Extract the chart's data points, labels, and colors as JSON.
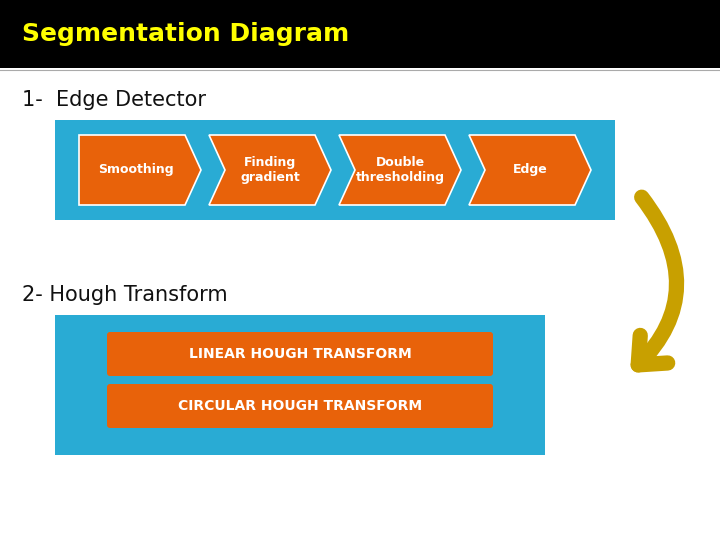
{
  "title": "Segmentation Diagram",
  "title_color": "#FFFF00",
  "title_bg": "#000000",
  "section1_label": "1-  Edge Detector",
  "section2_label": "2- Hough Transform",
  "section_label_color": "#111111",
  "bg_color": "#ffffff",
  "panel_color": "#29ABD4",
  "arrow_items": [
    "Smoothing",
    "Finding\ngradient",
    "Double\nthresholding",
    "Edge"
  ],
  "arrow_color": "#E8620A",
  "arrow_text_color": "#ffffff",
  "hough_items": [
    "LINEAR HOUGH TRANSFORM",
    "CIRCULAR HOUGH TRANSFORM"
  ],
  "hough_color": "#E8620A",
  "hough_text_color": "#ffffff",
  "curve_arrow_color": "#C8A000",
  "title_fontsize": 18,
  "section_fontsize": 15,
  "arrow_fontsize": 9,
  "hough_fontsize": 10
}
